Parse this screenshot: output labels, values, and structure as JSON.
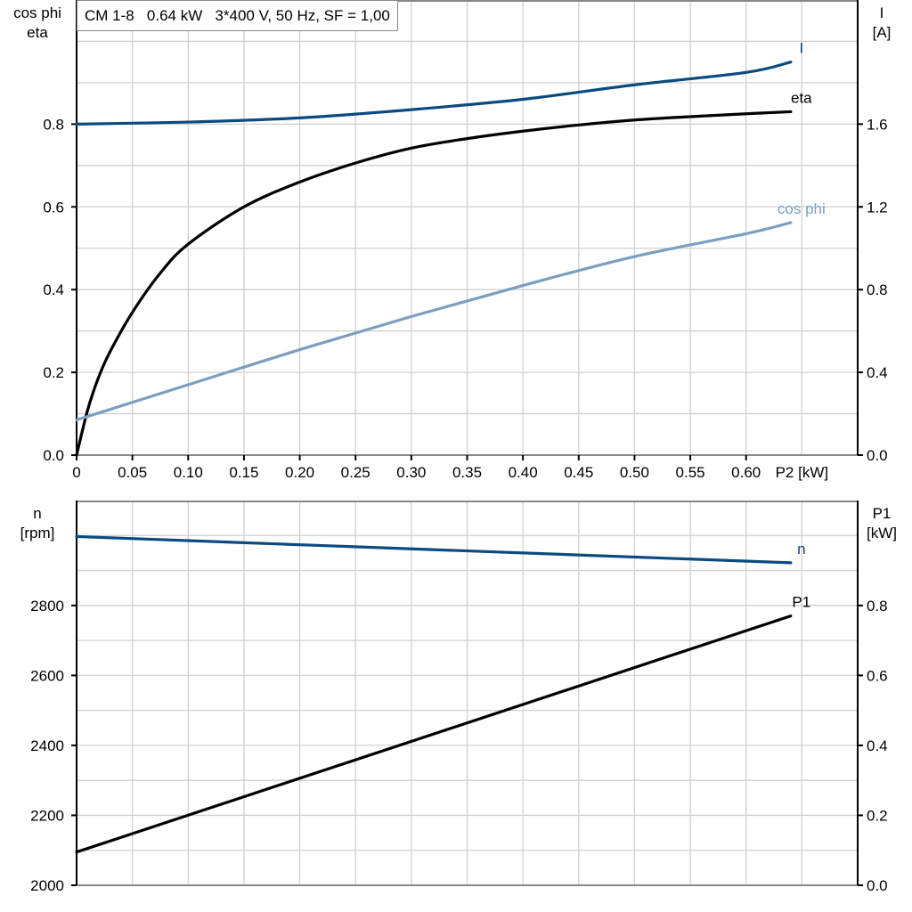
{
  "title": "CM 1-8   0.64 kW   3*400 V, 50 Hz, SF = 1,00",
  "colors": {
    "I": "#0a4a80",
    "eta": "#000000",
    "cos_phi": "#7b9fc0",
    "n": "#0a4a80",
    "P1": "#000000",
    "grid": "#d0d0d0"
  },
  "chart_data": [
    {
      "type": "line",
      "xlabel": "P2 [kW]",
      "xlim": [
        0,
        0.7
      ],
      "xticks": [
        "0",
        "0.05",
        "0.10",
        "0.15",
        "0.20",
        "0.25",
        "0.30",
        "0.35",
        "0.40",
        "0.45",
        "0.50",
        "0.55",
        "0.60"
      ],
      "ylabel_left": [
        "cos phi",
        "eta"
      ],
      "ylim_left": [
        0,
        1.1
      ],
      "yticks_left": [
        "0.0",
        "0.2",
        "0.4",
        "0.6",
        "0.8"
      ],
      "ylabel_right": [
        "I",
        "[A]"
      ],
      "ylim_right": [
        0,
        2.2
      ],
      "yticks_right": [
        "0.0",
        "0.4",
        "0.8",
        "1.2",
        "1.6"
      ],
      "grid": true,
      "series": [
        {
          "name": "I",
          "axis": "right",
          "x": [
            0,
            0.1,
            0.2,
            0.3,
            0.4,
            0.5,
            0.6,
            0.64
          ],
          "y": [
            1.6,
            1.61,
            1.63,
            1.67,
            1.72,
            1.79,
            1.85,
            1.9
          ]
        },
        {
          "name": "eta",
          "axis": "left",
          "x": [
            0,
            0.01,
            0.02,
            0.03,
            0.05,
            0.075,
            0.1,
            0.15,
            0.2,
            0.25,
            0.3,
            0.35,
            0.4,
            0.45,
            0.5,
            0.55,
            0.6,
            0.64
          ],
          "y": [
            0,
            0.11,
            0.19,
            0.25,
            0.345,
            0.44,
            0.51,
            0.6,
            0.66,
            0.706,
            0.742,
            0.765,
            0.783,
            0.798,
            0.81,
            0.818,
            0.825,
            0.83
          ]
        },
        {
          "name": "cos phi",
          "axis": "left",
          "x": [
            0,
            0.1,
            0.2,
            0.3,
            0.4,
            0.5,
            0.6,
            0.64
          ],
          "y": [
            0.085,
            0.17,
            0.255,
            0.335,
            0.41,
            0.48,
            0.535,
            0.562
          ]
        }
      ]
    },
    {
      "type": "line",
      "xlim": [
        0,
        0.7
      ],
      "ylabel_left": [
        "n",
        "[rpm]"
      ],
      "ylim_left": [
        2000,
        3100
      ],
      "yticks_left": [
        "2000",
        "2200",
        "2400",
        "2600",
        "2800"
      ],
      "ylabel_right": [
        "P1",
        "[kW]"
      ],
      "ylim_right": [
        0,
        1.1
      ],
      "yticks_right": [
        "0.0",
        "0.2",
        "0.4",
        "0.6",
        "0.8"
      ],
      "grid": true,
      "series": [
        {
          "name": "n",
          "axis": "left",
          "x": [
            0,
            0.64
          ],
          "y": [
            2997,
            2922
          ]
        },
        {
          "name": "P1",
          "axis": "right",
          "x": [
            0,
            0.64
          ],
          "y": [
            0.095,
            0.77
          ]
        }
      ]
    }
  ]
}
